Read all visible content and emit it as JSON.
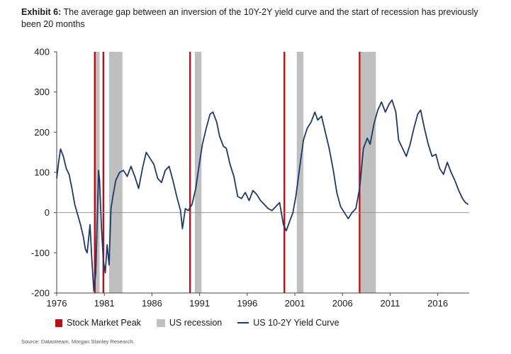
{
  "header": {
    "exhibit_label": "Exhibit 6:",
    "title_text": "The average gap between an inversion of the 10Y-2Y yield curve and the start of recession has previously been 20 months"
  },
  "legend": {
    "peak_label": "Stock Market Peak",
    "recession_label": "US recession",
    "curve_label": "US 10-2Y Yield Curve"
  },
  "source": "Source: Datastream, Morgan Stanley Research.",
  "colors": {
    "peak": "#b4121b",
    "recession": "#bfbfbf",
    "curve": "#1f3864",
    "axis": "#444444"
  },
  "chart_data": {
    "type": "line",
    "title": "The average gap between an inversion of the 10Y-2Y yield curve and the start of recession has previously been 20 months",
    "xlabel": "",
    "ylabel": "",
    "xlim": [
      1976.0,
      2019.3
    ],
    "ylim": [
      -200,
      400
    ],
    "x_ticks": [
      1976,
      1981,
      1986,
      1991,
      1996,
      2001,
      2006,
      2011,
      2016
    ],
    "y_ticks": [
      -200,
      -100,
      0,
      100,
      200,
      300,
      400
    ],
    "grid": false,
    "legend_position": "bottom",
    "stock_market_peaks": [
      1980.0,
      1980.9,
      1990.0,
      1999.9,
      2007.8
    ],
    "recessions": [
      [
        1980.0,
        1980.5
      ],
      [
        1981.5,
        1982.9
      ],
      [
        1990.5,
        1991.2
      ],
      [
        2001.2,
        2001.9
      ],
      [
        2007.9,
        2009.5
      ]
    ],
    "series": [
      {
        "name": "US 10-2Y Yield Curve",
        "points": [
          [
            1976.0,
            85
          ],
          [
            1976.2,
            125
          ],
          [
            1976.4,
            158
          ],
          [
            1976.7,
            140
          ],
          [
            1977.0,
            110
          ],
          [
            1977.3,
            95
          ],
          [
            1977.6,
            60
          ],
          [
            1977.9,
            20
          ],
          [
            1978.2,
            -5
          ],
          [
            1978.5,
            -30
          ],
          [
            1978.8,
            -60
          ],
          [
            1979.0,
            -90
          ],
          [
            1979.2,
            -100
          ],
          [
            1979.5,
            -30
          ],
          [
            1979.7,
            -120
          ],
          [
            1979.9,
            -195
          ],
          [
            1980.1,
            -150
          ],
          [
            1980.3,
            20
          ],
          [
            1980.4,
            105
          ],
          [
            1980.5,
            80
          ],
          [
            1980.7,
            -40
          ],
          [
            1980.9,
            -120
          ],
          [
            1981.1,
            -150
          ],
          [
            1981.3,
            -80
          ],
          [
            1981.5,
            -130
          ],
          [
            1981.7,
            10
          ],
          [
            1981.9,
            40
          ],
          [
            1982.2,
            80
          ],
          [
            1982.6,
            100
          ],
          [
            1983.0,
            105
          ],
          [
            1983.4,
            90
          ],
          [
            1983.8,
            115
          ],
          [
            1984.2,
            90
          ],
          [
            1984.6,
            60
          ],
          [
            1985.0,
            110
          ],
          [
            1985.4,
            150
          ],
          [
            1985.8,
            135
          ],
          [
            1986.2,
            120
          ],
          [
            1986.6,
            85
          ],
          [
            1987.0,
            75
          ],
          [
            1987.4,
            105
          ],
          [
            1987.8,
            115
          ],
          [
            1988.2,
            80
          ],
          [
            1988.6,
            40
          ],
          [
            1989.0,
            5
          ],
          [
            1989.2,
            -40
          ],
          [
            1989.5,
            10
          ],
          [
            1989.8,
            5
          ],
          [
            1990.2,
            20
          ],
          [
            1990.6,
            60
          ],
          [
            1990.9,
            110
          ],
          [
            1991.3,
            170
          ],
          [
            1991.7,
            210
          ],
          [
            1992.1,
            245
          ],
          [
            1992.4,
            250
          ],
          [
            1992.8,
            225
          ],
          [
            1993.1,
            190
          ],
          [
            1993.5,
            165
          ],
          [
            1993.8,
            160
          ],
          [
            1994.2,
            120
          ],
          [
            1994.6,
            90
          ],
          [
            1995.0,
            40
          ],
          [
            1995.4,
            35
          ],
          [
            1995.8,
            50
          ],
          [
            1996.2,
            30
          ],
          [
            1996.6,
            55
          ],
          [
            1997.0,
            45
          ],
          [
            1997.4,
            30
          ],
          [
            1997.8,
            20
          ],
          [
            1998.2,
            10
          ],
          [
            1998.6,
            5
          ],
          [
            1999.0,
            15
          ],
          [
            1999.4,
            25
          ],
          [
            1999.8,
            -30
          ],
          [
            2000.1,
            -45
          ],
          [
            2000.4,
            -25
          ],
          [
            2000.8,
            0
          ],
          [
            2001.1,
            40
          ],
          [
            2001.5,
            110
          ],
          [
            2001.9,
            180
          ],
          [
            2002.3,
            210
          ],
          [
            2002.7,
            225
          ],
          [
            2003.1,
            250
          ],
          [
            2003.4,
            230
          ],
          [
            2003.8,
            240
          ],
          [
            2004.2,
            200
          ],
          [
            2004.6,
            160
          ],
          [
            2005.0,
            110
          ],
          [
            2005.4,
            50
          ],
          [
            2005.8,
            15
          ],
          [
            2006.2,
            0
          ],
          [
            2006.6,
            -15
          ],
          [
            2007.0,
            0
          ],
          [
            2007.4,
            10
          ],
          [
            2007.8,
            60
          ],
          [
            2008.2,
            160
          ],
          [
            2008.6,
            185
          ],
          [
            2008.9,
            170
          ],
          [
            2009.3,
            220
          ],
          [
            2009.7,
            255
          ],
          [
            2010.1,
            275
          ],
          [
            2010.5,
            250
          ],
          [
            2010.9,
            270
          ],
          [
            2011.2,
            280
          ],
          [
            2011.6,
            250
          ],
          [
            2011.9,
            180
          ],
          [
            2012.3,
            160
          ],
          [
            2012.7,
            140
          ],
          [
            2013.1,
            170
          ],
          [
            2013.5,
            210
          ],
          [
            2013.9,
            245
          ],
          [
            2014.2,
            255
          ],
          [
            2014.6,
            210
          ],
          [
            2015.0,
            170
          ],
          [
            2015.4,
            140
          ],
          [
            2015.8,
            145
          ],
          [
            2016.2,
            110
          ],
          [
            2016.6,
            95
          ],
          [
            2017.0,
            125
          ],
          [
            2017.4,
            100
          ],
          [
            2017.8,
            80
          ],
          [
            2018.2,
            55
          ],
          [
            2018.6,
            35
          ],
          [
            2018.9,
            25
          ],
          [
            2019.2,
            20
          ]
        ]
      }
    ]
  }
}
